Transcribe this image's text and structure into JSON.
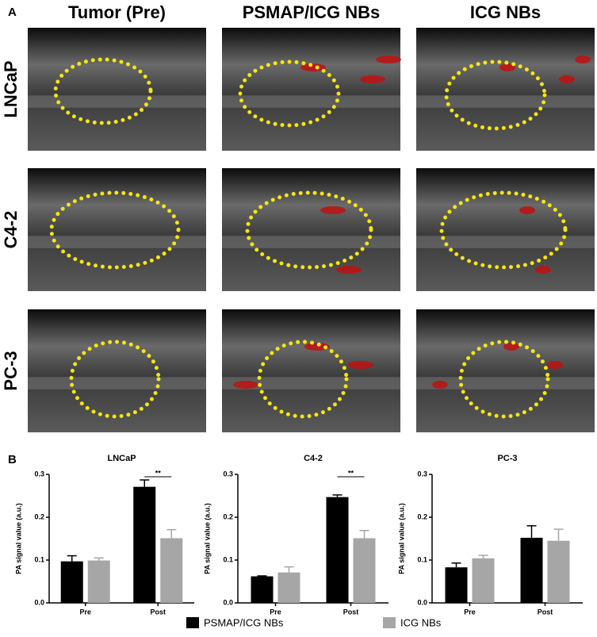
{
  "panel_labels": {
    "a": "A",
    "b": "B"
  },
  "columns": [
    "Tumor (Pre)",
    "PSMAP/ICG NBs",
    "ICG NBs"
  ],
  "rows": [
    "LNCaP",
    "C4-2",
    "PC-3"
  ],
  "legend": [
    {
      "name": "PSMAP/ICG NBs",
      "color": "#000000"
    },
    {
      "name": "ICG NBs",
      "color": "#a6a6a6"
    }
  ],
  "chart_data": [
    {
      "type": "bar",
      "title": "LNCaP",
      "ylabel": "PA signal value (a.u.)",
      "categories": [
        "Pre",
        "Post"
      ],
      "ylim": [
        0,
        0.3
      ],
      "yticks": [
        {
          "value": 0,
          "label": "0.0"
        },
        0.1,
        0.2,
        0.3
      ],
      "series": [
        {
          "color": "#000000",
          "values": [
            0.097,
            0.271
          ],
          "errors": [
            0.013,
            0.016
          ]
        },
        {
          "color": "#a6a6a6",
          "values": [
            0.099,
            0.151
          ],
          "errors": [
            0.006,
            0.02
          ]
        }
      ],
      "annotations": [
        {
          "text": "**",
          "category": 1
        }
      ]
    },
    {
      "type": "bar",
      "title": "C4-2",
      "ylabel": "PA signal value (a.u.)",
      "categories": [
        "Pre",
        "Post"
      ],
      "ylim": [
        0,
        0.3
      ],
      "yticks": [
        {
          "value": 0,
          "label": "0.0"
        },
        0.1,
        0.2,
        0.3
      ],
      "series": [
        {
          "color": "#000000",
          "values": [
            0.062,
            0.247
          ],
          "errors": [
            0.001,
            0.005
          ]
        },
        {
          "color": "#a6a6a6",
          "values": [
            0.071,
            0.151
          ],
          "errors": [
            0.013,
            0.018
          ]
        }
      ],
      "annotations": [
        {
          "text": "**",
          "category": 1
        }
      ]
    },
    {
      "type": "bar",
      "title": "PC-3",
      "ylabel": "PA signal value (a.u.)",
      "categories": [
        "Pre",
        "Post"
      ],
      "ylim": [
        0,
        0.3
      ],
      "yticks": [
        {
          "value": 0,
          "label": "0.0"
        },
        0.1,
        0.2,
        0.3
      ],
      "series": [
        {
          "color": "#000000",
          "values": [
            0.083,
            0.152
          ],
          "errors": [
            0.01,
            0.028
          ]
        },
        {
          "color": "#a6a6a6",
          "values": [
            0.104,
            0.145
          ],
          "errors": [
            0.007,
            0.027
          ]
        }
      ],
      "annotations": []
    }
  ]
}
